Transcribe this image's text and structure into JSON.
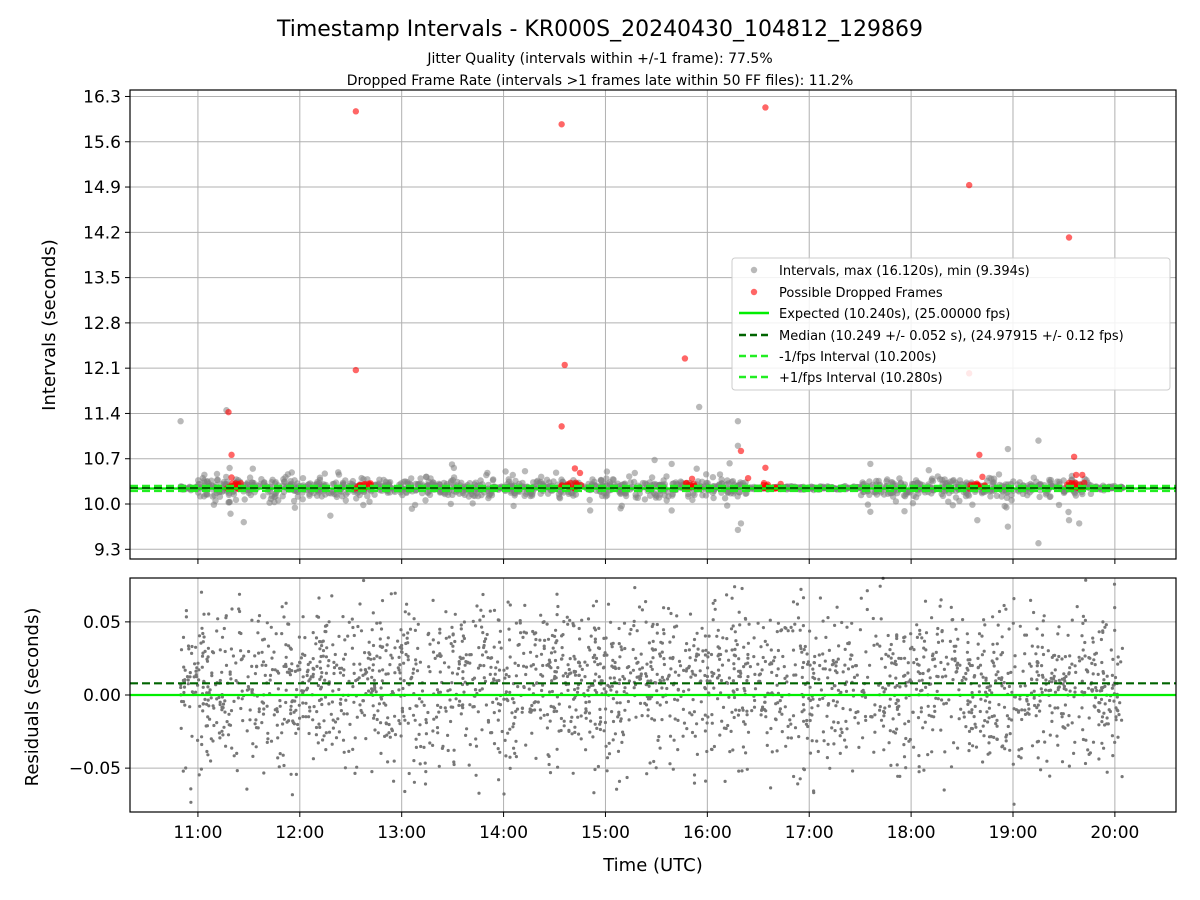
{
  "chart_data": [
    {
      "type": "scatter",
      "title": "Timestamp Intervals - KR000S_20240430_104812_129869",
      "subtitle": [
        "Jitter Quality (intervals within +/-1 frame): 77.5%",
        "Dropped Frame Rate (intervals >1 frames late within 50 FF files): 11.2%"
      ],
      "xlabel": "Time (UTC)",
      "ylabel": "Intervals (seconds)",
      "ylim": [
        9.15,
        16.4
      ],
      "xlim": [
        10.3333,
        20.6
      ],
      "yticks": [
        9.3,
        10.0,
        10.7,
        11.4,
        12.1,
        12.8,
        13.5,
        14.2,
        14.9,
        15.6,
        16.3
      ],
      "ytick_labels": [
        "9.3",
        "10.0",
        "10.7",
        "11.4",
        "12.1",
        "12.8",
        "13.5",
        "14.2",
        "14.9",
        "15.6",
        "16.3"
      ],
      "grid": true,
      "legend_position": "center-right",
      "legend": [
        "Intervals, max (16.120s), min (9.394s)",
        "Possible Dropped Frames",
        "Expected (10.240s), (25.00000 fps)",
        "Median (10.249 +/- 0.052 s), (24.97915 +/- 0.12 fps)",
        "-1/fps Interval (10.200s)",
        "+1/fps Interval (10.280s)"
      ],
      "series": [
        {
          "name": "Intervals, max (16.120s), min (9.394s)",
          "kind": "scatter",
          "color": "#808080",
          "time_range_hours": [
            10.83,
            20.08
          ],
          "max": 16.12,
          "min": 9.394,
          "notable_points": [
            {
              "x": 10.83,
              "y": 11.28
            },
            {
              "x": 11.28,
              "y": 11.45
            },
            {
              "x": 11.32,
              "y": 9.85
            },
            {
              "x": 11.45,
              "y": 9.72
            },
            {
              "x": 12.3,
              "y": 9.82
            },
            {
              "x": 14.85,
              "y": 9.9
            },
            {
              "x": 15.65,
              "y": 10.62
            },
            {
              "x": 15.65,
              "y": 9.9
            },
            {
              "x": 15.92,
              "y": 11.5
            },
            {
              "x": 16.3,
              "y": 11.28
            },
            {
              "x": 16.3,
              "y": 10.9
            },
            {
              "x": 16.3,
              "y": 9.6
            },
            {
              "x": 16.33,
              "y": 9.7
            },
            {
              "x": 17.6,
              "y": 10.62
            },
            {
              "x": 17.6,
              "y": 9.88
            },
            {
              "x": 18.65,
              "y": 9.75
            },
            {
              "x": 18.95,
              "y": 10.85
            },
            {
              "x": 18.95,
              "y": 9.65
            },
            {
              "x": 19.25,
              "y": 10.98
            },
            {
              "x": 19.25,
              "y": 9.394
            },
            {
              "x": 19.55,
              "y": 9.75
            },
            {
              "x": 19.65,
              "y": 9.7
            }
          ]
        },
        {
          "name": "Possible Dropped Frames",
          "kind": "scatter",
          "color": "#ff0000",
          "points": [
            {
              "x": 11.3,
              "y": 11.42
            },
            {
              "x": 11.33,
              "y": 10.76
            },
            {
              "x": 11.33,
              "y": 10.41
            },
            {
              "x": 12.55,
              "y": 16.07
            },
            {
              "x": 12.55,
              "y": 12.07
            },
            {
              "x": 14.57,
              "y": 15.87
            },
            {
              "x": 14.6,
              "y": 12.15
            },
            {
              "x": 14.57,
              "y": 11.2
            },
            {
              "x": 14.7,
              "y": 10.55
            },
            {
              "x": 14.75,
              "y": 10.48
            },
            {
              "x": 15.78,
              "y": 12.25
            },
            {
              "x": 15.85,
              "y": 10.39
            },
            {
              "x": 16.33,
              "y": 10.82
            },
            {
              "x": 16.4,
              "y": 10.4
            },
            {
              "x": 16.57,
              "y": 16.13
            },
            {
              "x": 16.57,
              "y": 10.56
            },
            {
              "x": 18.57,
              "y": 14.93
            },
            {
              "x": 18.57,
              "y": 12.02
            },
            {
              "x": 18.67,
              "y": 10.76
            },
            {
              "x": 18.7,
              "y": 10.42
            },
            {
              "x": 19.55,
              "y": 14.12
            },
            {
              "x": 19.6,
              "y": 10.73
            },
            {
              "x": 19.62,
              "y": 10.45
            },
            {
              "x": 19.68,
              "y": 10.45
            }
          ],
          "clusters": [
            {
              "x_start": 11.28,
              "x_end": 11.43,
              "y": 10.28
            },
            {
              "x_start": 12.53,
              "x_end": 12.7,
              "y": 10.28
            },
            {
              "x_start": 14.53,
              "x_end": 14.77,
              "y": 10.28
            },
            {
              "x_start": 15.77,
              "x_end": 15.93,
              "y": 10.28
            },
            {
              "x_start": 16.53,
              "x_end": 16.73,
              "y": 10.28
            },
            {
              "x_start": 18.57,
              "x_end": 18.73,
              "y": 10.28
            },
            {
              "x_start": 19.53,
              "x_end": 19.7,
              "y": 10.28
            }
          ]
        },
        {
          "name": "Expected (10.240s), (25.00000 fps)",
          "kind": "hline",
          "y": 10.24,
          "color": "#00ee00",
          "style": "solid"
        },
        {
          "name": "Median (10.249 +/- 0.052 s), (24.97915 +/- 0.12 fps)",
          "kind": "hline",
          "y": 10.249,
          "color": "#006400",
          "style": "dashed"
        },
        {
          "name": "-1/fps Interval (10.200s)",
          "kind": "hline",
          "y": 10.2,
          "color": "#22ee22",
          "style": "dashed"
        },
        {
          "name": "+1/fps Interval (10.280s)",
          "kind": "hline",
          "y": 10.28,
          "color": "#22ee22",
          "style": "dashed"
        }
      ]
    },
    {
      "type": "scatter",
      "xlabel": "Time (UTC)",
      "ylabel": "Residuals (seconds)",
      "ylim": [
        -0.08,
        0.08
      ],
      "xlim": [
        10.3333,
        20.6
      ],
      "yticks": [
        -0.05,
        0.0,
        0.05
      ],
      "ytick_labels": [
        "−0.05",
        "0.00",
        "0.05"
      ],
      "xticks": [
        11,
        12,
        13,
        14,
        15,
        16,
        17,
        18,
        19,
        20
      ],
      "xtick_labels": [
        "11:00",
        "12:00",
        "13:00",
        "14:00",
        "15:00",
        "16:00",
        "17:00",
        "18:00",
        "19:00",
        "20:00"
      ],
      "grid": true,
      "series": [
        {
          "name": "",
          "kind": "scatter",
          "color": "#777777",
          "time_range_hours": [
            10.83,
            20.08
          ],
          "y_range": [
            -0.08,
            0.08
          ]
        },
        {
          "name": "",
          "kind": "hline",
          "y": 0.0,
          "color": "#00ee00",
          "style": "solid"
        },
        {
          "name": "",
          "kind": "hline",
          "y": 0.008,
          "color": "#006400",
          "style": "dashed"
        }
      ]
    }
  ]
}
